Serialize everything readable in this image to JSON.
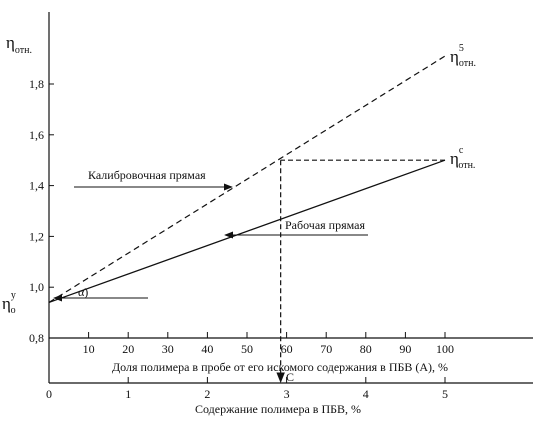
{
  "chart_data": {
    "type": "line",
    "title": "",
    "y_axis": {
      "label_main": "η",
      "label_sub": "отн.",
      "ylim": [
        0.8,
        2.0
      ],
      "ticks": [
        0.8,
        1.0,
        1.2,
        1.4,
        1.6,
        1.8
      ],
      "tick_labels": [
        "0,8",
        "1,0",
        "1,2",
        "1,4",
        "1,6",
        "1,8"
      ]
    },
    "x_axis_top": {
      "label": "Доля полимера в пробе от его искомого содержания в ПБВ (А), %",
      "xlim": [
        0,
        100
      ],
      "ticks": [
        10,
        20,
        30,
        40,
        50,
        60,
        70,
        80,
        90,
        100
      ],
      "tick_labels": [
        "10",
        "20",
        "30",
        "40",
        "50",
        "60",
        "70",
        "80",
        "90",
        "100"
      ]
    },
    "x_axis_bottom": {
      "label": "Содержание полимера в ПБВ, %",
      "xlim": [
        0,
        5
      ],
      "ticks": [
        0,
        1,
        2,
        3,
        4,
        5
      ],
      "tick_labels": [
        "0",
        "1",
        "2",
        "3",
        "4",
        "5"
      ]
    },
    "series": [
      {
        "name": "Калибровочная прямая",
        "style": "dashed",
        "points": [
          [
            0,
            0.94
          ],
          [
            100,
            1.91
          ]
        ]
      },
      {
        "name": "Рабочая прямая",
        "style": "solid",
        "points": [
          [
            0,
            0.94
          ],
          [
            100,
            1.5
          ]
        ]
      }
    ],
    "annotations": {
      "calibration_label": "Калибровочная прямая",
      "working_label": "Рабочая прямая",
      "eta5_main": "η",
      "eta5_sup": "5",
      "eta5_sub": "отн.",
      "etac_main": "η",
      "etac_sup": "c",
      "etac_sub": "отн.",
      "eta0_main": "η",
      "eta0_sup": "у",
      "eta0_sub": "о",
      "alpha": "α)",
      "c_label": "С",
      "intersection_x": 58.5,
      "intersection_y": 1.5
    },
    "grid": false,
    "legend": "none"
  }
}
